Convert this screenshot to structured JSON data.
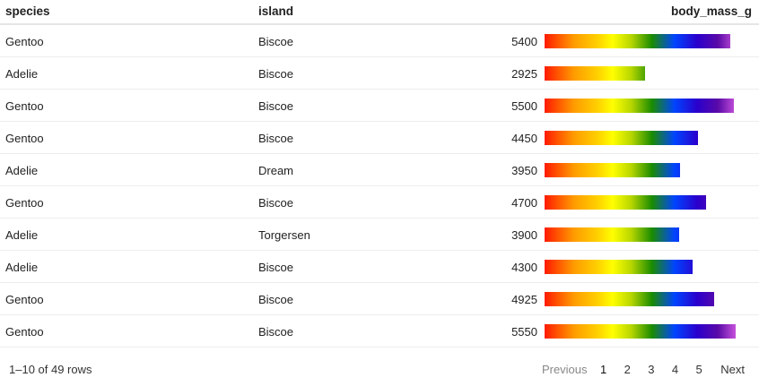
{
  "table": {
    "headers": {
      "species": "species",
      "island": "island",
      "mass": "body_mass_g"
    },
    "rows": [
      {
        "species": "Gentoo",
        "island": "Biscoe",
        "mass": "5400",
        "value": 5400
      },
      {
        "species": "Adelie",
        "island": "Biscoe",
        "mass": "2925",
        "value": 2925
      },
      {
        "species": "Gentoo",
        "island": "Biscoe",
        "mass": "5500",
        "value": 5500
      },
      {
        "species": "Gentoo",
        "island": "Biscoe",
        "mass": "4450",
        "value": 4450
      },
      {
        "species": "Adelie",
        "island": "Dream",
        "mass": "3950",
        "value": 3950
      },
      {
        "species": "Gentoo",
        "island": "Biscoe",
        "mass": "4700",
        "value": 4700
      },
      {
        "species": "Adelie",
        "island": "Torgersen",
        "mass": "3900",
        "value": 3900
      },
      {
        "species": "Adelie",
        "island": "Biscoe",
        "mass": "4300",
        "value": 4300
      },
      {
        "species": "Gentoo",
        "island": "Biscoe",
        "mass": "4925",
        "value": 4925
      },
      {
        "species": "Gentoo",
        "island": "Biscoe",
        "mass": "5550",
        "value": 5550
      }
    ],
    "bar_max": 6000
  },
  "footer": {
    "rows_info": "1–10 of 49 rows",
    "previous": "Previous",
    "pages": [
      "1",
      "2",
      "3",
      "4",
      "5"
    ],
    "current_page": "1",
    "next": "Next"
  }
}
